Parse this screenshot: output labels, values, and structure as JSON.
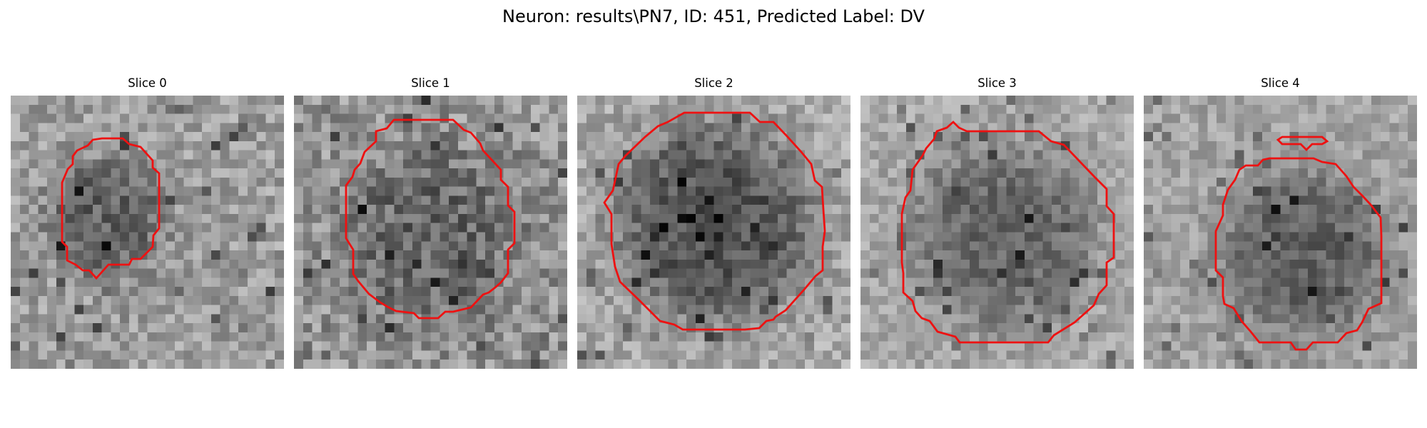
{
  "figure": {
    "title": "Neuron: results\\PN7, ID: 451, Predicted Label: DV"
  },
  "panels": [
    {
      "title": "Slice 0"
    },
    {
      "title": "Slice 1"
    },
    {
      "title": "Slice 2"
    },
    {
      "title": "Slice 3"
    },
    {
      "title": "Slice 4"
    }
  ],
  "colors": {
    "contour": "#ee1111",
    "colormap": "grayscale"
  }
}
